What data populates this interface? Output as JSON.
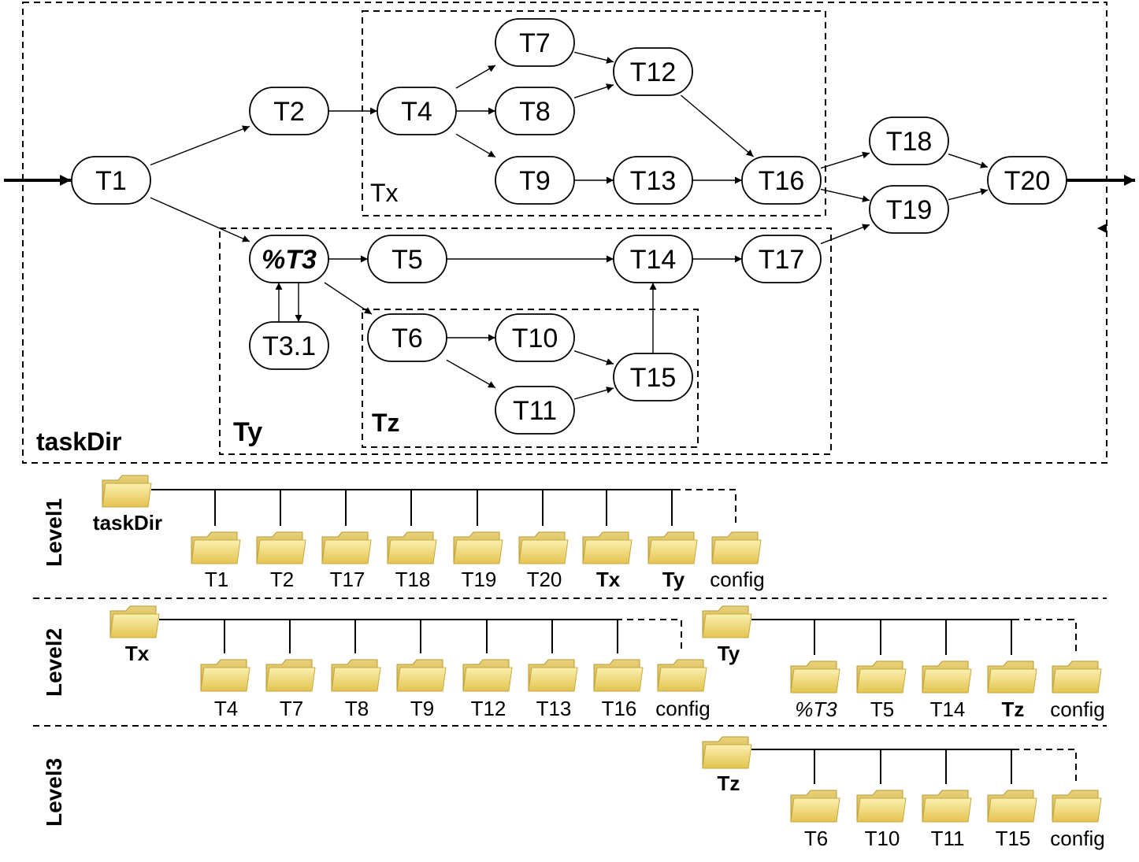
{
  "diagram": {
    "groups": {
      "taskDir": "taskDir",
      "Tx": "Tx",
      "Ty": "Ty",
      "Tz": "Tz"
    },
    "nodes": {
      "T1": "T1",
      "T2": "T2",
      "T3": "%T3",
      "T31": "T3.1",
      "T4": "T4",
      "T5": "T5",
      "T6": "T6",
      "T7": "T7",
      "T8": "T8",
      "T9": "T9",
      "T10": "T10",
      "T11": "T11",
      "T12": "T12",
      "T13": "T13",
      "T14": "T14",
      "T15": "T15",
      "T16": "T16",
      "T17": "T17",
      "T18": "T18",
      "T19": "T19",
      "T20": "T20"
    }
  },
  "colors": {
    "group_fill": "#eeebe0",
    "tz_fill": "#dcdcdc",
    "config_text": "#0000cc",
    "folder_fill": "#f3dc7a"
  },
  "tree": {
    "levels": [
      "Level1",
      "Level2",
      "Level3"
    ],
    "level1": {
      "root": "taskDir",
      "children": [
        "T1",
        "T2",
        "T17",
        "T18",
        "T19",
        "T20",
        "Tx",
        "Ty",
        "config"
      ]
    },
    "level2_tx": {
      "root": "Tx",
      "children": [
        "T4",
        "T7",
        "T8",
        "T9",
        "T12",
        "T13",
        "T16",
        "config"
      ]
    },
    "level2_ty": {
      "root": "Ty",
      "children": [
        "%T3",
        "T5",
        "T14",
        "Tz",
        "config"
      ]
    },
    "level3_tz": {
      "root": "Tz",
      "children": [
        "T6",
        "T10",
        "T11",
        "T15",
        "config"
      ]
    }
  }
}
